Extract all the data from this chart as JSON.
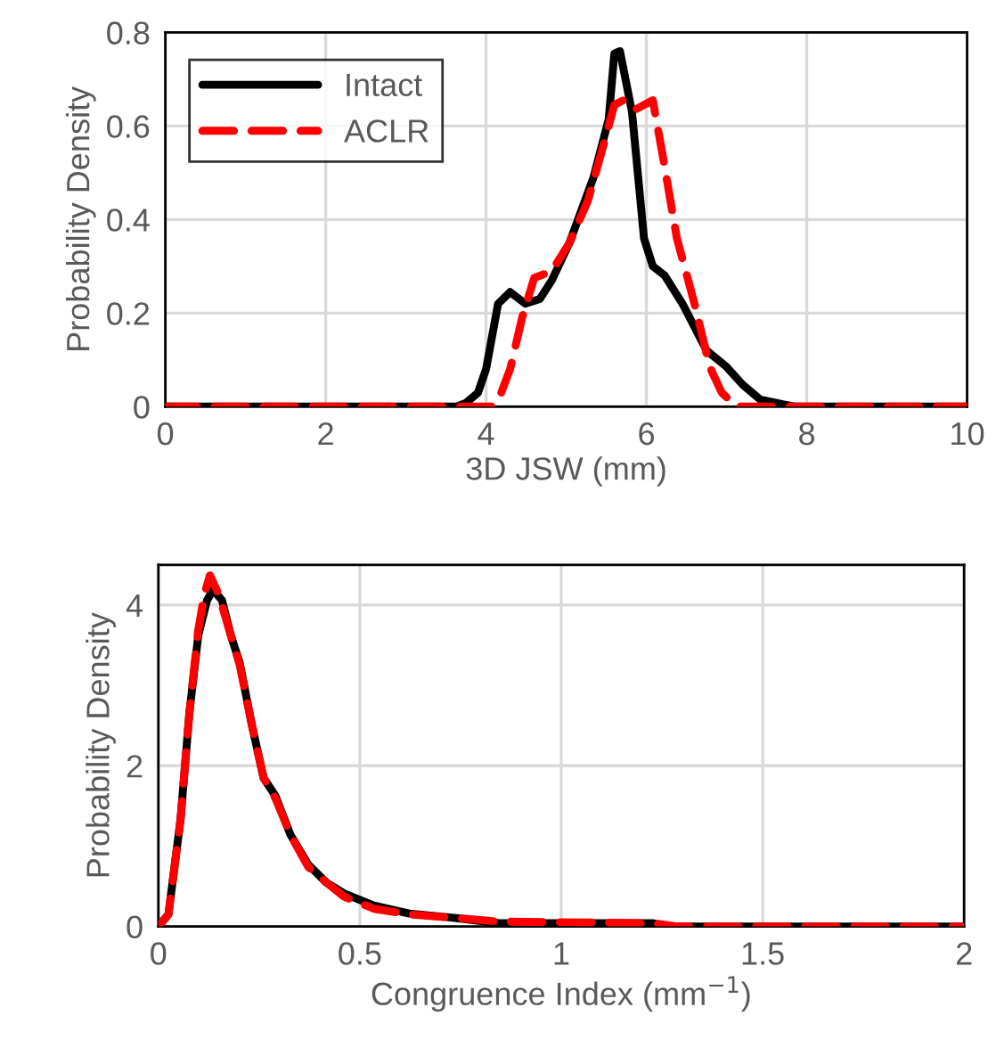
{
  "chart_data": [
    {
      "type": "line",
      "xlabel": "3D JSW (mm)",
      "ylabel": "Probability Density",
      "xlim": [
        0,
        10
      ],
      "ylim": [
        0,
        0.8
      ],
      "xticks": [
        0,
        2,
        4,
        6,
        8,
        10
      ],
      "yticks": [
        0,
        0.2,
        0.4,
        0.6,
        0.8
      ],
      "grid": true,
      "legend": "top left",
      "series": [
        {
          "name": "Intact",
          "color": "#000000",
          "line_style": "solid",
          "x": [
            0,
            3.63,
            3.75,
            3.9,
            4.0,
            4.15,
            4.3,
            4.49,
            4.67,
            4.82,
            5.04,
            5.34,
            5.53,
            5.6,
            5.67,
            5.82,
            5.97,
            6.08,
            6.23,
            6.45,
            6.75,
            7.0,
            7.2,
            7.42,
            7.7,
            7.86,
            10
          ],
          "values": [
            0,
            0,
            0.008,
            0.03,
            0.08,
            0.22,
            0.245,
            0.22,
            0.23,
            0.27,
            0.35,
            0.49,
            0.615,
            0.755,
            0.76,
            0.63,
            0.36,
            0.3,
            0.28,
            0.22,
            0.12,
            0.085,
            0.047,
            0.015,
            0.005,
            0,
            0
          ]
        },
        {
          "name": "ACLR",
          "color": "#ff0000",
          "line_style": "dashed",
          "x": [
            0,
            4.08,
            4.19,
            4.3,
            4.45,
            4.6,
            4.82,
            5.04,
            5.27,
            5.45,
            5.6,
            5.71,
            5.86,
            6.08,
            6.19,
            6.38,
            6.6,
            6.79,
            6.94,
            7.12,
            10
          ],
          "values": [
            0,
            0,
            0.03,
            0.08,
            0.19,
            0.275,
            0.29,
            0.35,
            0.44,
            0.55,
            0.645,
            0.655,
            0.635,
            0.655,
            0.55,
            0.36,
            0.22,
            0.085,
            0.03,
            0,
            0
          ]
        }
      ]
    },
    {
      "type": "line",
      "xlabel": "Congruence Index (mm$^{−1}$)",
      "ylabel": "Probability Density",
      "xlim": [
        0,
        2
      ],
      "ylim": [
        0,
        4.5
      ],
      "xticks": [
        0,
        0.5,
        1,
        1.5,
        2
      ],
      "yticks": [
        0,
        2,
        4
      ],
      "grid": true,
      "series": [
        {
          "color": "#000000",
          "line_style": "solid",
          "x": [
            0,
            0.025,
            0.055,
            0.077,
            0.099,
            0.121,
            0.136,
            0.158,
            0.18,
            0.202,
            0.232,
            0.261,
            0.291,
            0.328,
            0.372,
            0.416,
            0.461,
            0.535,
            0.623,
            0.727,
            0.845,
            1.229,
            1.258,
            2
          ],
          "values": [
            0,
            0.15,
            1.33,
            2.66,
            3.62,
            4.06,
            4.19,
            4.06,
            3.62,
            3.28,
            2.51,
            1.85,
            1.62,
            1.14,
            0.77,
            0.55,
            0.41,
            0.26,
            0.16,
            0.11,
            0.04,
            0.04,
            0,
            0
          ]
        },
        {
          "color": "#ff0000",
          "line_style": "dashed",
          "x": [
            0,
            0.025,
            0.055,
            0.077,
            0.099,
            0.114,
            0.128,
            0.15,
            0.18,
            0.202,
            0.232,
            0.261,
            0.291,
            0.328,
            0.372,
            0.416,
            0.461,
            0.535,
            0.623,
            0.727,
            0.845,
            1.229,
            1.288,
            2
          ],
          "values": [
            0,
            0.15,
            1.33,
            2.66,
            3.69,
            4.13,
            4.37,
            4.13,
            3.62,
            3.25,
            2.51,
            1.85,
            1.59,
            1.14,
            0.74,
            0.55,
            0.37,
            0.22,
            0.15,
            0.11,
            0.06,
            0.04,
            0,
            0
          ]
        }
      ]
    }
  ]
}
